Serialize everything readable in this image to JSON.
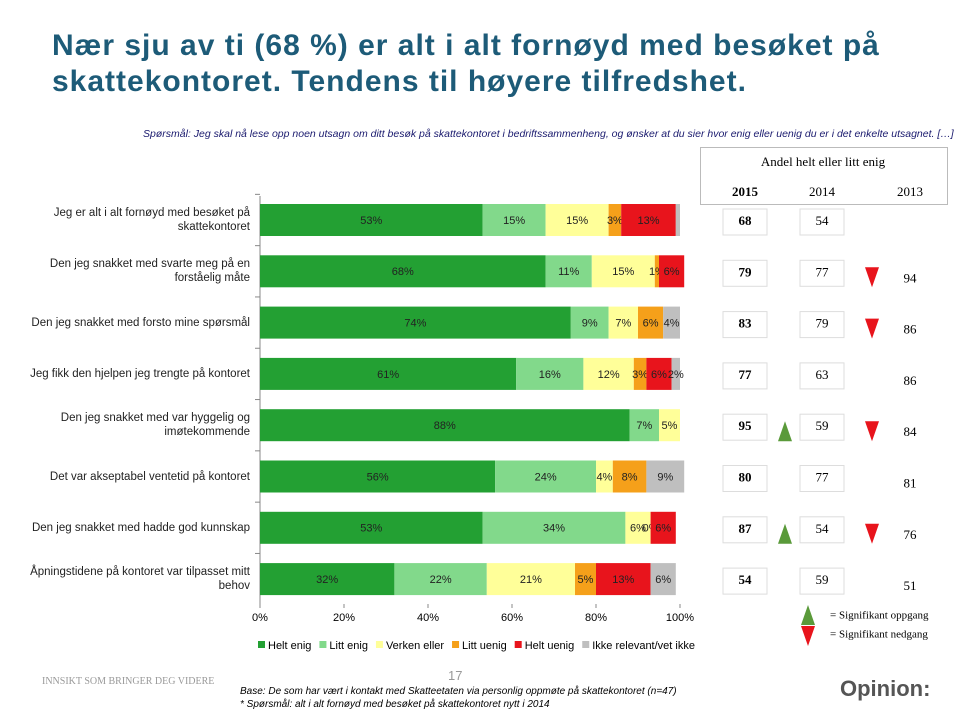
{
  "header": {
    "title": "Nær sju av ti (68 %) er alt i alt fornøyd med besøket på skattekontoret. Tendens til høyere tilfredshet.",
    "question": "Spørsmål: Jeg skal nå lese opp noen utsagn om ditt besøk på skattekontoret i bedriftssammenheng, og ønsker at du sier hvor enig eller uenig du er i det enkelte utsagnet. […]"
  },
  "chart_data": {
    "type": "stacked-bar",
    "categories": [
      "Jeg er alt i alt fornøyd med besøket på skattekontoret",
      "Den jeg snakket med svarte meg på en forståelig måte",
      "Den jeg snakket med forsto mine spørsmål",
      "Jeg fikk den hjelpen jeg trengte på kontoret",
      "Den jeg snakket med var hyggelig og imøtekommende",
      "Det var akseptabel ventetid på kontoret",
      "Den jeg snakket med hadde god kunnskap",
      "Åpningstidene på kontoret var tilpasset mitt behov"
    ],
    "series": [
      {
        "name": "Helt enig",
        "color": "#23a033",
        "values": [
          53,
          68,
          74,
          61,
          88,
          56,
          53,
          32
        ],
        "value_labels": [
          "53%",
          "68%",
          "74%",
          "61%",
          "88%",
          "56%",
          "53%",
          "32%"
        ]
      },
      {
        "name": "Litt enig",
        "color": "#82d98b",
        "values": [
          15,
          11,
          9,
          16,
          7,
          24,
          34,
          22
        ],
        "value_labels": [
          "15%",
          "11%",
          "9%",
          "16%",
          "7%",
          "24%",
          "34%",
          "22%"
        ]
      },
      {
        "name": "Verken eller",
        "color": "#ffff99",
        "values": [
          15,
          15,
          7,
          12,
          5,
          4,
          6,
          21
        ],
        "value_labels": [
          "15%",
          "15%",
          "7%",
          "12%",
          "5%",
          "4%",
          "6%",
          "21%"
        ]
      },
      {
        "name": "Litt uenig",
        "color": "#f5a01a",
        "values": [
          3,
          1,
          6,
          3,
          0,
          8,
          0,
          5
        ],
        "value_labels": [
          "3%",
          "1%",
          "6%",
          "3%",
          null,
          "8%",
          "0%",
          "5%"
        ]
      },
      {
        "name": "Helt uenig",
        "color": "#e8141c",
        "values": [
          13,
          6,
          0,
          6,
          0,
          0,
          6,
          13
        ],
        "value_labels": [
          "13%",
          "6%",
          null,
          "6%",
          null,
          null,
          "6%",
          "13%"
        ]
      },
      {
        "name": "Ikke relevant/vet ikke",
        "color": "#bfbfbf",
        "values": [
          1,
          0,
          4,
          2,
          0,
          9,
          0,
          6
        ],
        "value_labels": [
          null,
          null,
          "4%",
          "2%",
          null,
          "9%",
          null,
          "6%"
        ]
      }
    ],
    "xlim": [
      0,
      100
    ],
    "xticks": [
      {
        "value": 0,
        "label": "0%"
      },
      {
        "value": 20,
        "label": "20%"
      },
      {
        "value": 40,
        "label": "40%"
      },
      {
        "value": 60,
        "label": "60%"
      },
      {
        "value": 80,
        "label": "80%"
      },
      {
        "value": 100,
        "label": "100%"
      }
    ]
  },
  "trend": {
    "box_title": "Andel helt eller litt enig",
    "columns": [
      {
        "year": "2015",
        "values": [
          68,
          79,
          83,
          77,
          95,
          80,
          87,
          54
        ]
      },
      {
        "year": "2014",
        "values": [
          54,
          77,
          79,
          63,
          59,
          77,
          54,
          59
        ]
      },
      {
        "year": "2013",
        "values": [
          null,
          94,
          86,
          86,
          84,
          81,
          76,
          51
        ]
      }
    ],
    "change_2014": [
      null,
      null,
      null,
      null,
      "up",
      null,
      "up",
      null
    ],
    "change_2013": [
      null,
      "down",
      "down",
      null,
      "down",
      null,
      "down",
      null
    ],
    "up_label": "= Signifikant oppgang",
    "down_label": "= Signifikant nedgang"
  },
  "footer": {
    "tagline": "INNSIKT SOM BRINGER DEG VIDERE",
    "page": "17",
    "base": "Base: De som har vært i kontakt med Skatteetaten via personlig oppmøte på skattekontoret (n=47)",
    "note": "* Spørsmål: alt i alt fornøyd med besøket på skattekontoret nytt i 2014",
    "logo": "Opinion:"
  }
}
